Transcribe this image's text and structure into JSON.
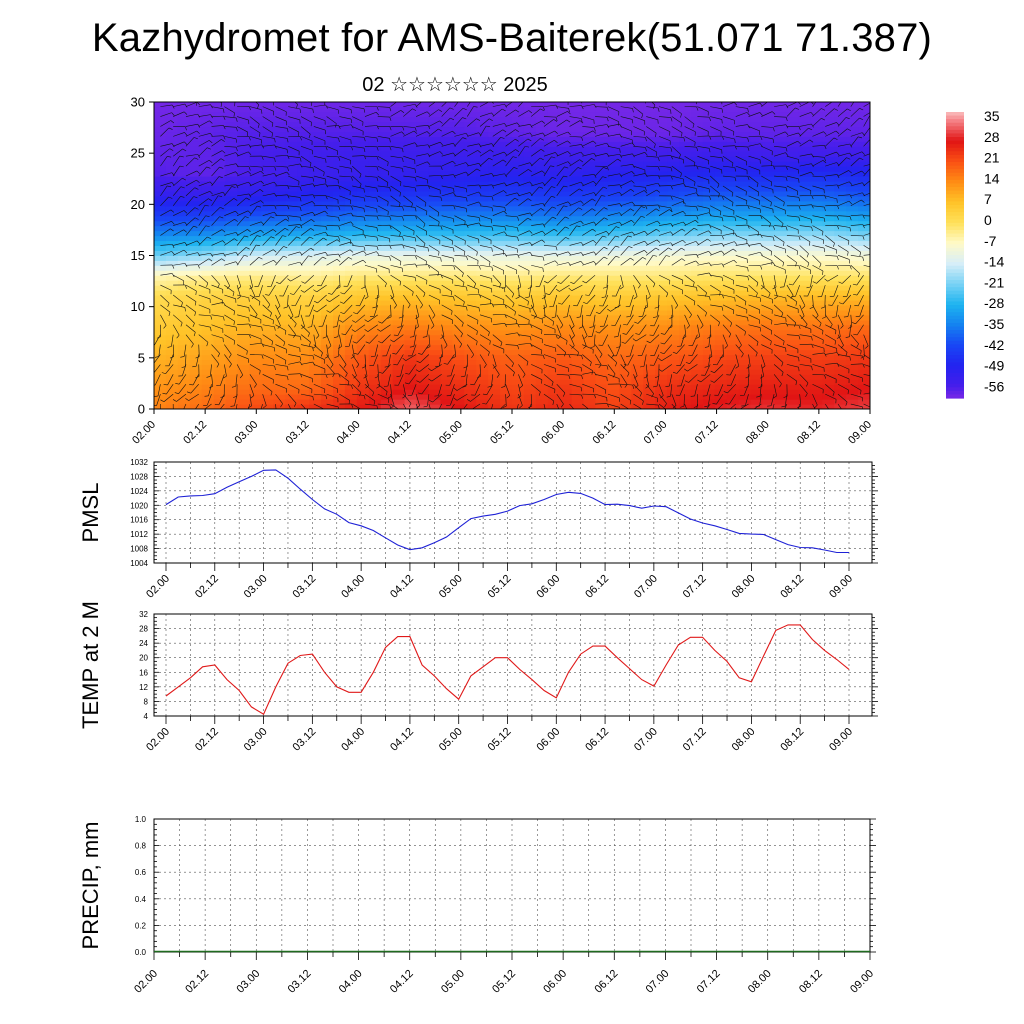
{
  "header": {
    "title": "Kazhydromet for AMS-Baiterek(51.071 71.387)",
    "subtitle": "02 ☆☆☆☆☆☆ 2025"
  },
  "time_ticks": [
    "02.00",
    "02.12",
    "03.00",
    "03.12",
    "04.00",
    "04.12",
    "05.00",
    "05.12",
    "06.00",
    "06.12",
    "07.00",
    "07.12",
    "08.00",
    "08.12",
    "09.00"
  ],
  "chart_data": [
    {
      "type": "heatmap",
      "title": "Kazhydromet for AMS-Baiterek(51.071 71.387)",
      "subtitle": "02 ☆☆☆☆☆☆ 2025",
      "x_ticks": [
        "02.00",
        "02.12",
        "03.00",
        "03.12",
        "04.00",
        "04.12",
        "05.00",
        "05.12",
        "06.00",
        "06.12",
        "07.00",
        "07.12",
        "08.00",
        "08.12",
        "09.00"
      ],
      "y_ticks": [
        0,
        5,
        10,
        15,
        20,
        25,
        30
      ],
      "ylim": [
        0,
        30
      ],
      "colorbar_labels": [
        "35",
        "28",
        "21",
        "14",
        "7",
        "0",
        "-7",
        "-14",
        "-21",
        "-28",
        "-35",
        "-42",
        "-49",
        "-56"
      ],
      "colorbar_range": [
        -60,
        38
      ],
      "overlay": "wind barbs",
      "time_hours": [
        0,
        12,
        24,
        36,
        48,
        60,
        72,
        84,
        96,
        108,
        120,
        132,
        144,
        156,
        168
      ],
      "series": [
        {
          "name": "0",
          "values": [
            15,
            18,
            22,
            25,
            27,
            33,
            28,
            24,
            26,
            23,
            27,
            29,
            30,
            29,
            31
          ]
        },
        {
          "name": "2",
          "values": [
            13,
            15,
            18,
            18,
            24,
            28,
            25,
            22,
            24,
            21,
            25,
            26,
            27,
            27,
            28
          ]
        },
        {
          "name": "5",
          "values": [
            9,
            11,
            14,
            14,
            20,
            24,
            21,
            19,
            20,
            18,
            20,
            22,
            23,
            23,
            24
          ]
        },
        {
          "name": "8",
          "values": [
            5,
            7,
            9,
            9,
            14,
            16,
            14,
            13,
            14,
            13,
            14,
            16,
            17,
            17,
            18
          ]
        },
        {
          "name": "11",
          "values": [
            1,
            3,
            4,
            3,
            6,
            7,
            6,
            5,
            6,
            5,
            6,
            7,
            8,
            8,
            8
          ]
        },
        {
          "name": "13",
          "values": [
            -6,
            -4,
            -3,
            -4,
            -2,
            -2,
            -2,
            -3,
            -2,
            -2,
            -2,
            -1,
            -1,
            -1,
            -1
          ]
        },
        {
          "name": "15",
          "values": [
            -22,
            -19,
            -14,
            -13,
            -11,
            -11,
            -11,
            -11,
            -11,
            -10,
            -9,
            -8,
            -8,
            -8,
            -9
          ]
        },
        {
          "name": "17",
          "values": [
            -34,
            -33,
            -30,
            -29,
            -27,
            -26,
            -26,
            -25,
            -26,
            -24,
            -22,
            -20,
            -20,
            -19,
            -21
          ]
        },
        {
          "name": "19",
          "values": [
            -44,
            -44,
            -41,
            -40,
            -38,
            -37,
            -36,
            -36,
            -37,
            -35,
            -33,
            -31,
            -31,
            -30,
            -32
          ]
        },
        {
          "name": "21",
          "values": [
            -52,
            -53,
            -51,
            -49,
            -47,
            -46,
            -45,
            -44,
            -45,
            -44,
            -42,
            -40,
            -40,
            -39,
            -41
          ]
        },
        {
          "name": "23",
          "values": [
            -57,
            -58,
            -56,
            -54,
            -53,
            -52,
            -51,
            -50,
            -51,
            -50,
            -49,
            -48,
            -48,
            -47,
            -48
          ]
        },
        {
          "name": "25",
          "values": [
            -58,
            -58,
            -56,
            -55,
            -54,
            -54,
            -54,
            -54,
            -55,
            -55,
            -55,
            -54,
            -55,
            -55,
            -55
          ]
        },
        {
          "name": "27",
          "values": [
            -59,
            -58,
            -57,
            -57,
            -57,
            -57,
            -57,
            -58,
            -59,
            -59,
            -59,
            -58,
            -58,
            -58,
            -58
          ]
        },
        {
          "name": "31",
          "values": [
            -60,
            -60,
            -60,
            -60,
            -60,
            -60,
            -60,
            -60,
            -60,
            -60,
            -60,
            -60,
            -60,
            -60,
            -60
          ]
        }
      ]
    },
    {
      "type": "line",
      "ylabel": "PMSL",
      "ylim": [
        1004,
        1032
      ],
      "y_ticks": [
        1004,
        1008,
        1012,
        1016,
        1020,
        1024,
        1028,
        1032
      ],
      "x_ticks": [
        "02.00",
        "02.12",
        "03.00",
        "03.12",
        "04.00",
        "04.12",
        "05.00",
        "05.12",
        "06.00",
        "06.12",
        "07.00",
        "07.12",
        "08.00",
        "08.12",
        "09.00"
      ],
      "color": "#1f22d6",
      "x_hours": [
        0,
        3,
        6,
        9,
        12,
        15,
        18,
        21,
        24,
        27,
        30,
        33,
        36,
        39,
        42,
        45,
        48,
        51,
        54,
        57,
        60,
        63,
        66,
        69,
        72,
        75,
        78,
        81,
        84,
        87,
        90,
        93,
        96,
        99,
        102,
        105,
        108,
        111,
        114,
        117,
        120,
        123,
        126,
        129,
        132,
        135,
        138,
        141,
        144,
        147,
        150,
        153,
        156,
        159,
        162,
        165,
        168
      ],
      "values": [
        1020.2,
        1022.3,
        1022.6,
        1022.7,
        1023.2,
        1025.0,
        1026.5,
        1028.0,
        1029.7,
        1029.8,
        1027.5,
        1024.5,
        1021.6,
        1019.0,
        1017.5,
        1015.2,
        1014.3,
        1013.0,
        1011.0,
        1009.0,
        1007.7,
        1008.2,
        1009.6,
        1011.2,
        1013.8,
        1016.3,
        1017.0,
        1017.5,
        1018.4,
        1019.9,
        1020.4,
        1021.6,
        1023.0,
        1023.6,
        1023.3,
        1022.0,
        1020.2,
        1020.3,
        1019.9,
        1019.2,
        1019.8,
        1019.6,
        1017.9,
        1016.2,
        1015.1,
        1014.3,
        1013.3,
        1012.2,
        1012.0,
        1011.9,
        1010.5,
        1009.1,
        1008.3,
        1008.2,
        1007.6,
        1006.9,
        1006.9
      ]
    },
    {
      "type": "line",
      "ylabel": "TEMP at 2 M",
      "ylim": [
        4,
        32
      ],
      "y_ticks": [
        4,
        8,
        12,
        16,
        20,
        24,
        28,
        32
      ],
      "x_ticks": [
        "02.00",
        "02.12",
        "03.00",
        "03.12",
        "04.00",
        "04.12",
        "05.00",
        "05.12",
        "06.00",
        "06.12",
        "07.00",
        "07.12",
        "08.00",
        "08.12",
        "09.00"
      ],
      "color": "#e01a1a",
      "x_hours": [
        0,
        3,
        6,
        9,
        12,
        15,
        18,
        21,
        24,
        27,
        30,
        33,
        36,
        39,
        42,
        45,
        48,
        51,
        54,
        57,
        60,
        63,
        66,
        69,
        72,
        75,
        78,
        81,
        84,
        87,
        90,
        93,
        96,
        99,
        102,
        105,
        108,
        111,
        114,
        117,
        120,
        123,
        126,
        129,
        132,
        135,
        138,
        141,
        144,
        147,
        150,
        153,
        156,
        159,
        162,
        165,
        168
      ],
      "values": [
        9.5,
        12.0,
        14.5,
        17.5,
        18.0,
        14.0,
        11.0,
        6.5,
        4.5,
        12.0,
        18.5,
        20.6,
        21.0,
        16.0,
        12.0,
        10.5,
        10.5,
        16.0,
        22.8,
        25.8,
        25.8,
        18.0,
        15.0,
        11.5,
        8.6,
        15.0,
        17.5,
        20.0,
        20.0,
        16.8,
        14.0,
        11.0,
        9.0,
        16.0,
        21.0,
        23.2,
        23.2,
        20.0,
        17.0,
        14.0,
        12.2,
        18.0,
        23.5,
        25.6,
        25.6,
        22.0,
        19.0,
        14.5,
        13.4,
        20.5,
        27.5,
        29.0,
        29.0,
        25.0,
        22.0,
        19.5,
        16.8
      ]
    },
    {
      "type": "bar",
      "ylabel": "PRECIP, mm",
      "ylim": [
        0,
        1.0
      ],
      "y_ticks": [
        "0.0",
        "0.2",
        "0.4",
        "0.6",
        "0.8",
        "1.0"
      ],
      "x_ticks": [
        "02.00",
        "02.12",
        "03.00",
        "03.12",
        "04.00",
        "04.12",
        "05.00",
        "05.12",
        "06.00",
        "06.12",
        "07.00",
        "07.12",
        "08.00",
        "08.12",
        "09.00"
      ],
      "values": [
        0,
        0,
        0,
        0,
        0,
        0,
        0,
        0,
        0,
        0,
        0,
        0,
        0,
        0,
        0
      ]
    }
  ]
}
